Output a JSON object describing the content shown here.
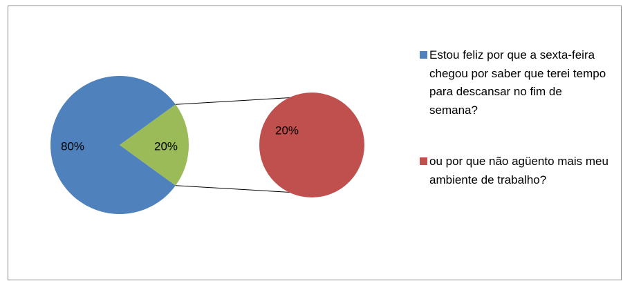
{
  "chart_data": {
    "type": "pie-of-pie",
    "categories": [
      "Estou feliz por que a sexta-feira chegou por saber que terei tempo para descansar no fim de semana?",
      "ou por que não agüento mais meu ambiente de trabalho?"
    ],
    "values": [
      80,
      20
    ],
    "value_labels": [
      "80%",
      "20%"
    ],
    "colors": [
      "#4f81bd",
      "#c0504d"
    ],
    "other_color": "#9bbb59",
    "legend": "right"
  }
}
